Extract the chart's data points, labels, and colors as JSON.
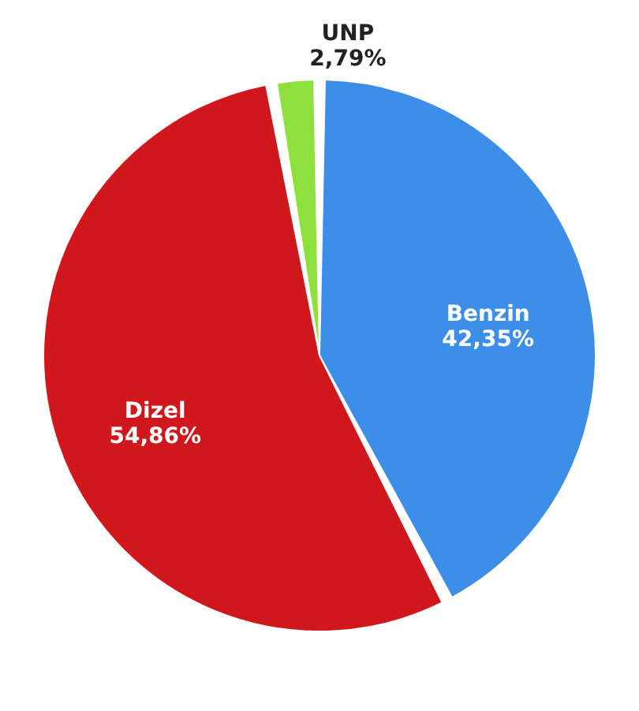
{
  "chart_data": {
    "type": "pie",
    "categories": [
      "Benzin",
      "Dizel",
      "UNP"
    ],
    "values": [
      42.35,
      54.86,
      2.79
    ],
    "colors": [
      "#3d8ee8",
      "#d0171c",
      "#8ee03c"
    ],
    "value_labels": [
      "42,35%",
      "54,86%",
      "2,79%"
    ],
    "legend": false
  }
}
